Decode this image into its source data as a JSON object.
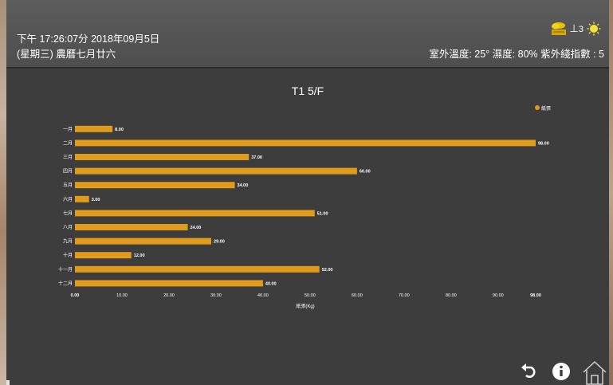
{
  "header": {
    "datetime": "下午 17:26:07分 2018年09月5日",
    "lunar": "(星期三) 農曆七月廿六",
    "weather": "室外溫度: 25° 濕度: 80% 紫外綫指數 : 5",
    "uv_level": "3",
    "icons": [
      "storm-warning-icon",
      "uv-index-icon",
      "sun-icon"
    ]
  },
  "footer": {
    "icons": [
      "back-icon",
      "info-icon",
      "home-icon"
    ]
  },
  "colors": {
    "bar": "#e09a1c",
    "text": "#ffffff",
    "background": "#3d3d3d"
  },
  "chart_data": {
    "type": "bar",
    "orientation": "horizontal",
    "title": "T1 5/F",
    "categories": [
      "一月",
      "二月",
      "三月",
      "四月",
      "五月",
      "六月",
      "七月",
      "八月",
      "九月",
      "十月",
      "十一月",
      "十二月"
    ],
    "series": [
      {
        "name": "紙張",
        "values": [
          8,
          98,
          37,
          60,
          34,
          3,
          51,
          24,
          29,
          12,
          52,
          40
        ]
      }
    ],
    "value_labels": [
      "8.00",
      "98.00",
      "37.00",
      "60.00",
      "34.00",
      "3.00",
      "51.00",
      "24.00",
      "29.00",
      "12.00",
      "52.00",
      "40.00"
    ],
    "xlabel": "紙張(Kg)",
    "xlim": [
      0,
      98
    ],
    "xticks": [
      0,
      10,
      20,
      30,
      40,
      50,
      60,
      70,
      80,
      90,
      98
    ],
    "xtick_labels": [
      "0.00",
      "10.00",
      "20.00",
      "30.00",
      "40.00",
      "50.00",
      "60.00",
      "70.00",
      "80.00",
      "90.00",
      "98.00"
    ],
    "legend_position": "top-right",
    "grid": false
  }
}
